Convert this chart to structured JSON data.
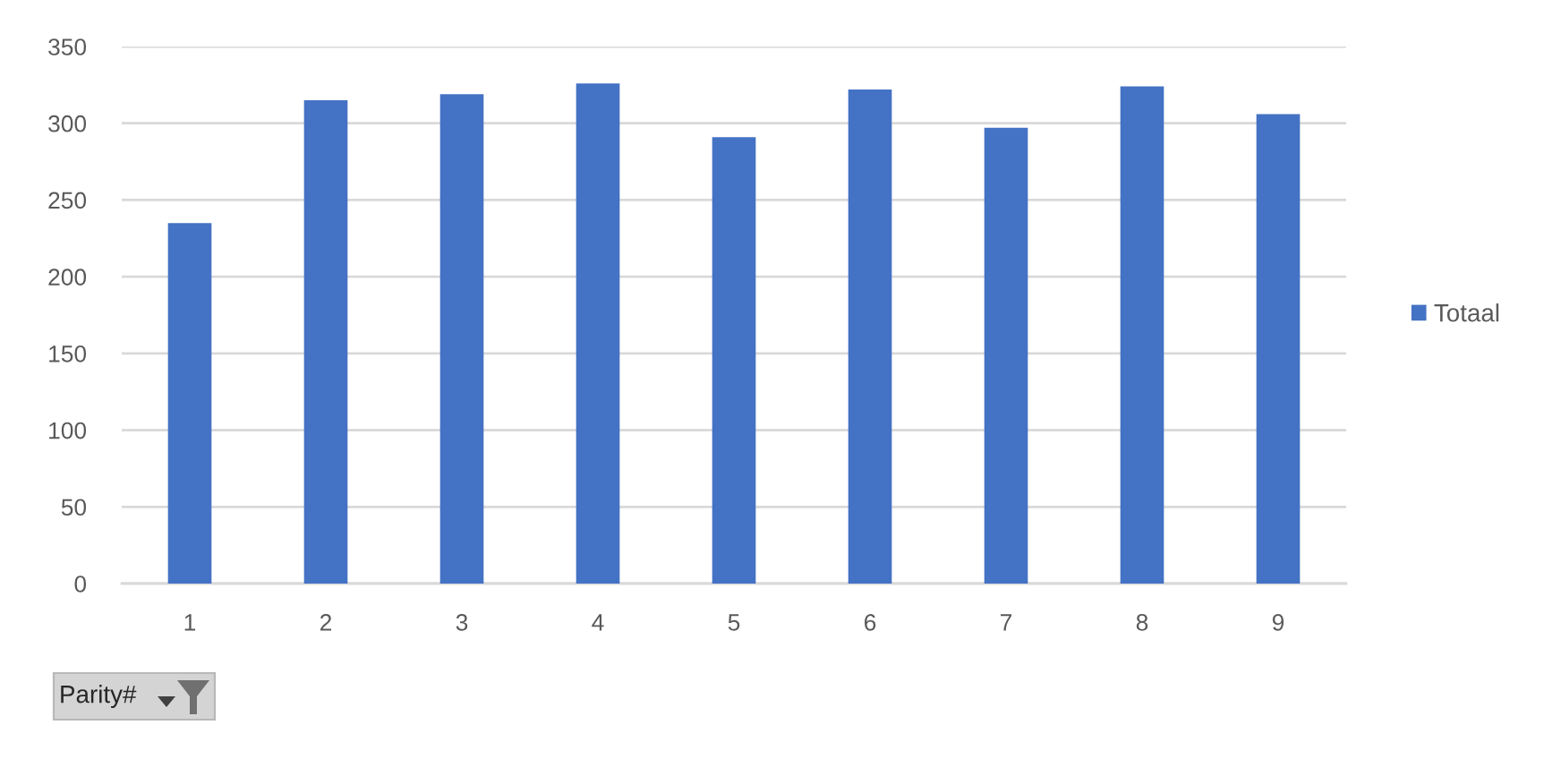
{
  "chart_data": {
    "type": "bar",
    "categories": [
      "1",
      "2",
      "3",
      "4",
      "5",
      "6",
      "7",
      "8",
      "9"
    ],
    "series": [
      {
        "name": "Totaal",
        "color": "#4472c4",
        "values": [
          235,
          315,
          319,
          326,
          291,
          322,
          297,
          324,
          306
        ]
      }
    ],
    "xlabel": "Parity#",
    "ylim": [
      0,
      350
    ],
    "yticks": [
      0,
      50,
      100,
      150,
      200,
      250,
      300,
      350
    ],
    "grid": "y",
    "legend": "right"
  }
}
